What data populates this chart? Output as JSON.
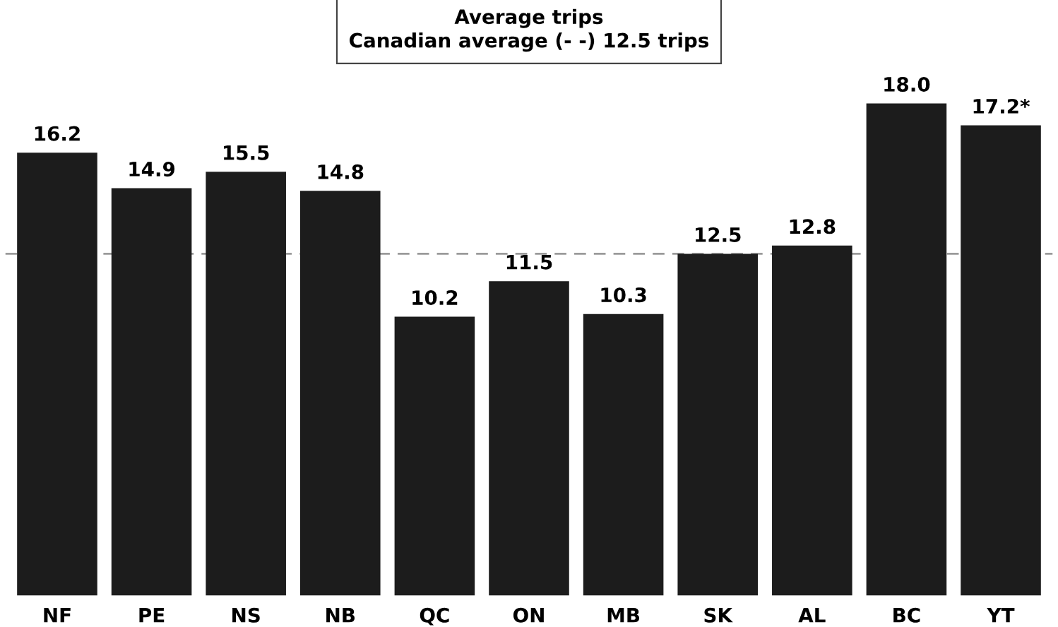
{
  "chart_data": {
    "type": "bar",
    "title": "Average trips",
    "subtitle": "Canadian average (- -) 12.5 trips",
    "categories": [
      "NF",
      "PE",
      "NS",
      "NB",
      "QC",
      "ON",
      "MB",
      "SK",
      "AL",
      "BC",
      "YT"
    ],
    "values": [
      16.2,
      14.9,
      15.5,
      14.8,
      10.2,
      11.5,
      10.3,
      12.5,
      12.8,
      18.0,
      17.2
    ],
    "value_labels": [
      "16.2",
      "14.9",
      "15.5",
      "14.8",
      "10.2",
      "11.5",
      "10.3",
      "12.5",
      "12.8",
      "18.0",
      "17.2*"
    ],
    "color": "#1c1c1c",
    "ref_lines": [
      {
        "axis": "y",
        "value": 12.5,
        "color": "#9a9a9a",
        "line_style": "dashed"
      }
    ],
    "tick_labels": "x",
    "grid": false,
    "legend": false
  }
}
